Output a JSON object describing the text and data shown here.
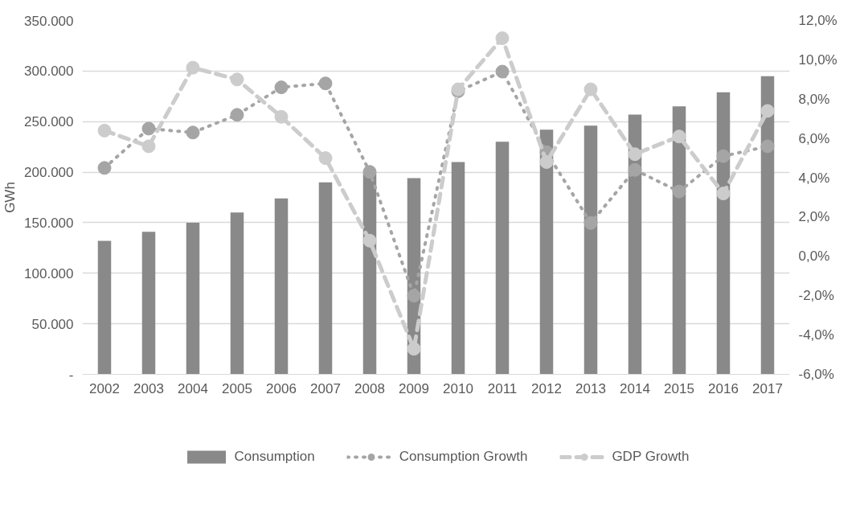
{
  "chart_data": {
    "type": "bar",
    "ylabel": "GWh",
    "categories": [
      "2002",
      "2003",
      "2004",
      "2005",
      "2006",
      "2007",
      "2008",
      "2009",
      "2010",
      "2011",
      "2012",
      "2013",
      "2014",
      "2015",
      "2016",
      "2017"
    ],
    "series": [
      {
        "name": "Consumption",
        "color": "#898989",
        "values": [
          132000,
          141000,
          150000,
          160000,
          174000,
          190000,
          199000,
          194000,
          210000,
          230000,
          242000,
          246000,
          257000,
          265000,
          279000,
          295000
        ]
      },
      {
        "name": "Consumption Growth",
        "type": "line",
        "axis": "y2",
        "color": "#a5a5a5",
        "line_style": "dotted",
        "marker": "circle",
        "values": [
          4.5,
          6.5,
          6.3,
          7.2,
          8.6,
          8.8,
          4.3,
          -2.0,
          8.4,
          9.4,
          5.3,
          1.7,
          4.4,
          3.3,
          5.1,
          5.6
        ]
      },
      {
        "name": "GDP Growth",
        "type": "line",
        "axis": "y2",
        "color": "#cccccc",
        "line_style": "dashed",
        "marker": "circle",
        "values": [
          6.4,
          5.6,
          9.6,
          9.0,
          7.1,
          5.0,
          0.8,
          -4.7,
          8.5,
          11.1,
          4.8,
          8.5,
          5.2,
          6.1,
          3.2,
          7.4
        ]
      }
    ],
    "ylim": [
      0,
      350000
    ],
    "yticks": [
      {
        "value": 0,
        "label": "-"
      },
      {
        "value": 50000,
        "label": "50.000"
      },
      {
        "value": 100000,
        "label": "100.000"
      },
      {
        "value": 150000,
        "label": "150.000"
      },
      {
        "value": 200000,
        "label": "200.000"
      },
      {
        "value": 250000,
        "label": "250.000"
      },
      {
        "value": 300000,
        "label": "300.000"
      },
      {
        "value": 350000,
        "label": "350.000"
      }
    ],
    "y2lim": [
      -6,
      12
    ],
    "y2ticks": [
      {
        "value": -6,
        "label": "-6,0%"
      },
      {
        "value": -4,
        "label": "-4,0%"
      },
      {
        "value": -2,
        "label": "-2,0%"
      },
      {
        "value": 0,
        "label": "0,0%"
      },
      {
        "value": 2,
        "label": "2,0%"
      },
      {
        "value": 4,
        "label": "4,0%"
      },
      {
        "value": 6,
        "label": "6,0%"
      },
      {
        "value": 8,
        "label": "8,0%"
      },
      {
        "value": 10,
        "label": "10,0%"
      },
      {
        "value": 12,
        "label": "12,0%"
      }
    ],
    "grid": "y",
    "legend": "bottom"
  }
}
